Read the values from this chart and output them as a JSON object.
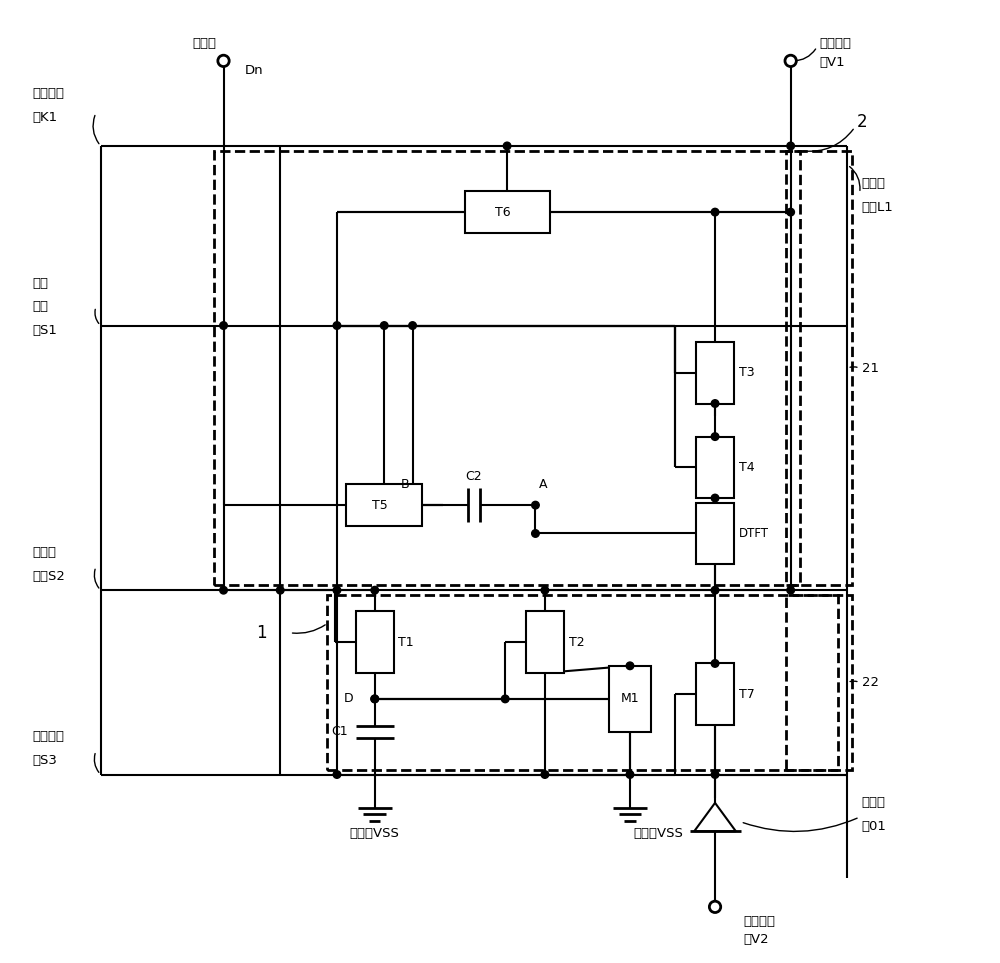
{
  "bg_color": "#ffffff",
  "figsize": [
    10.0,
    9.63
  ],
  "dpi": 100,
  "labels": {
    "data_line": "数据线",
    "Dn": "Dn",
    "V1_label": "第一电平",
    "V1_sub": "端V1",
    "signal_collect1": "信号采",
    "signal_collect2": "集线L1",
    "signal_control1": "信号控制",
    "signal_control2": "线K1",
    "scan1_a": "第一",
    "scan1_b": "扫描",
    "scan1_c": "线S1",
    "scan2_a": "第二扫",
    "scan2_b": "描线S2",
    "scan3_a": "第三扫描",
    "scan3_b": "线S3",
    "box2": "2",
    "box1": "1",
    "label21": "21",
    "label22": "22",
    "gnd1": "接地端VSS",
    "gnd2": "接地端VSS",
    "V2_label": "第二电平",
    "V2_sub": "端V2",
    "light1": "发光器",
    "light2": "件01",
    "A": "A",
    "B": "B",
    "D": "D",
    "T1": "T1",
    "T2": "T2",
    "T3": "T3",
    "T4": "T4",
    "T5": "T5",
    "T6": "T6",
    "T7": "T7",
    "M1": "M1",
    "DTFT": "DTFT",
    "C1": "C1",
    "C2": "C2"
  }
}
